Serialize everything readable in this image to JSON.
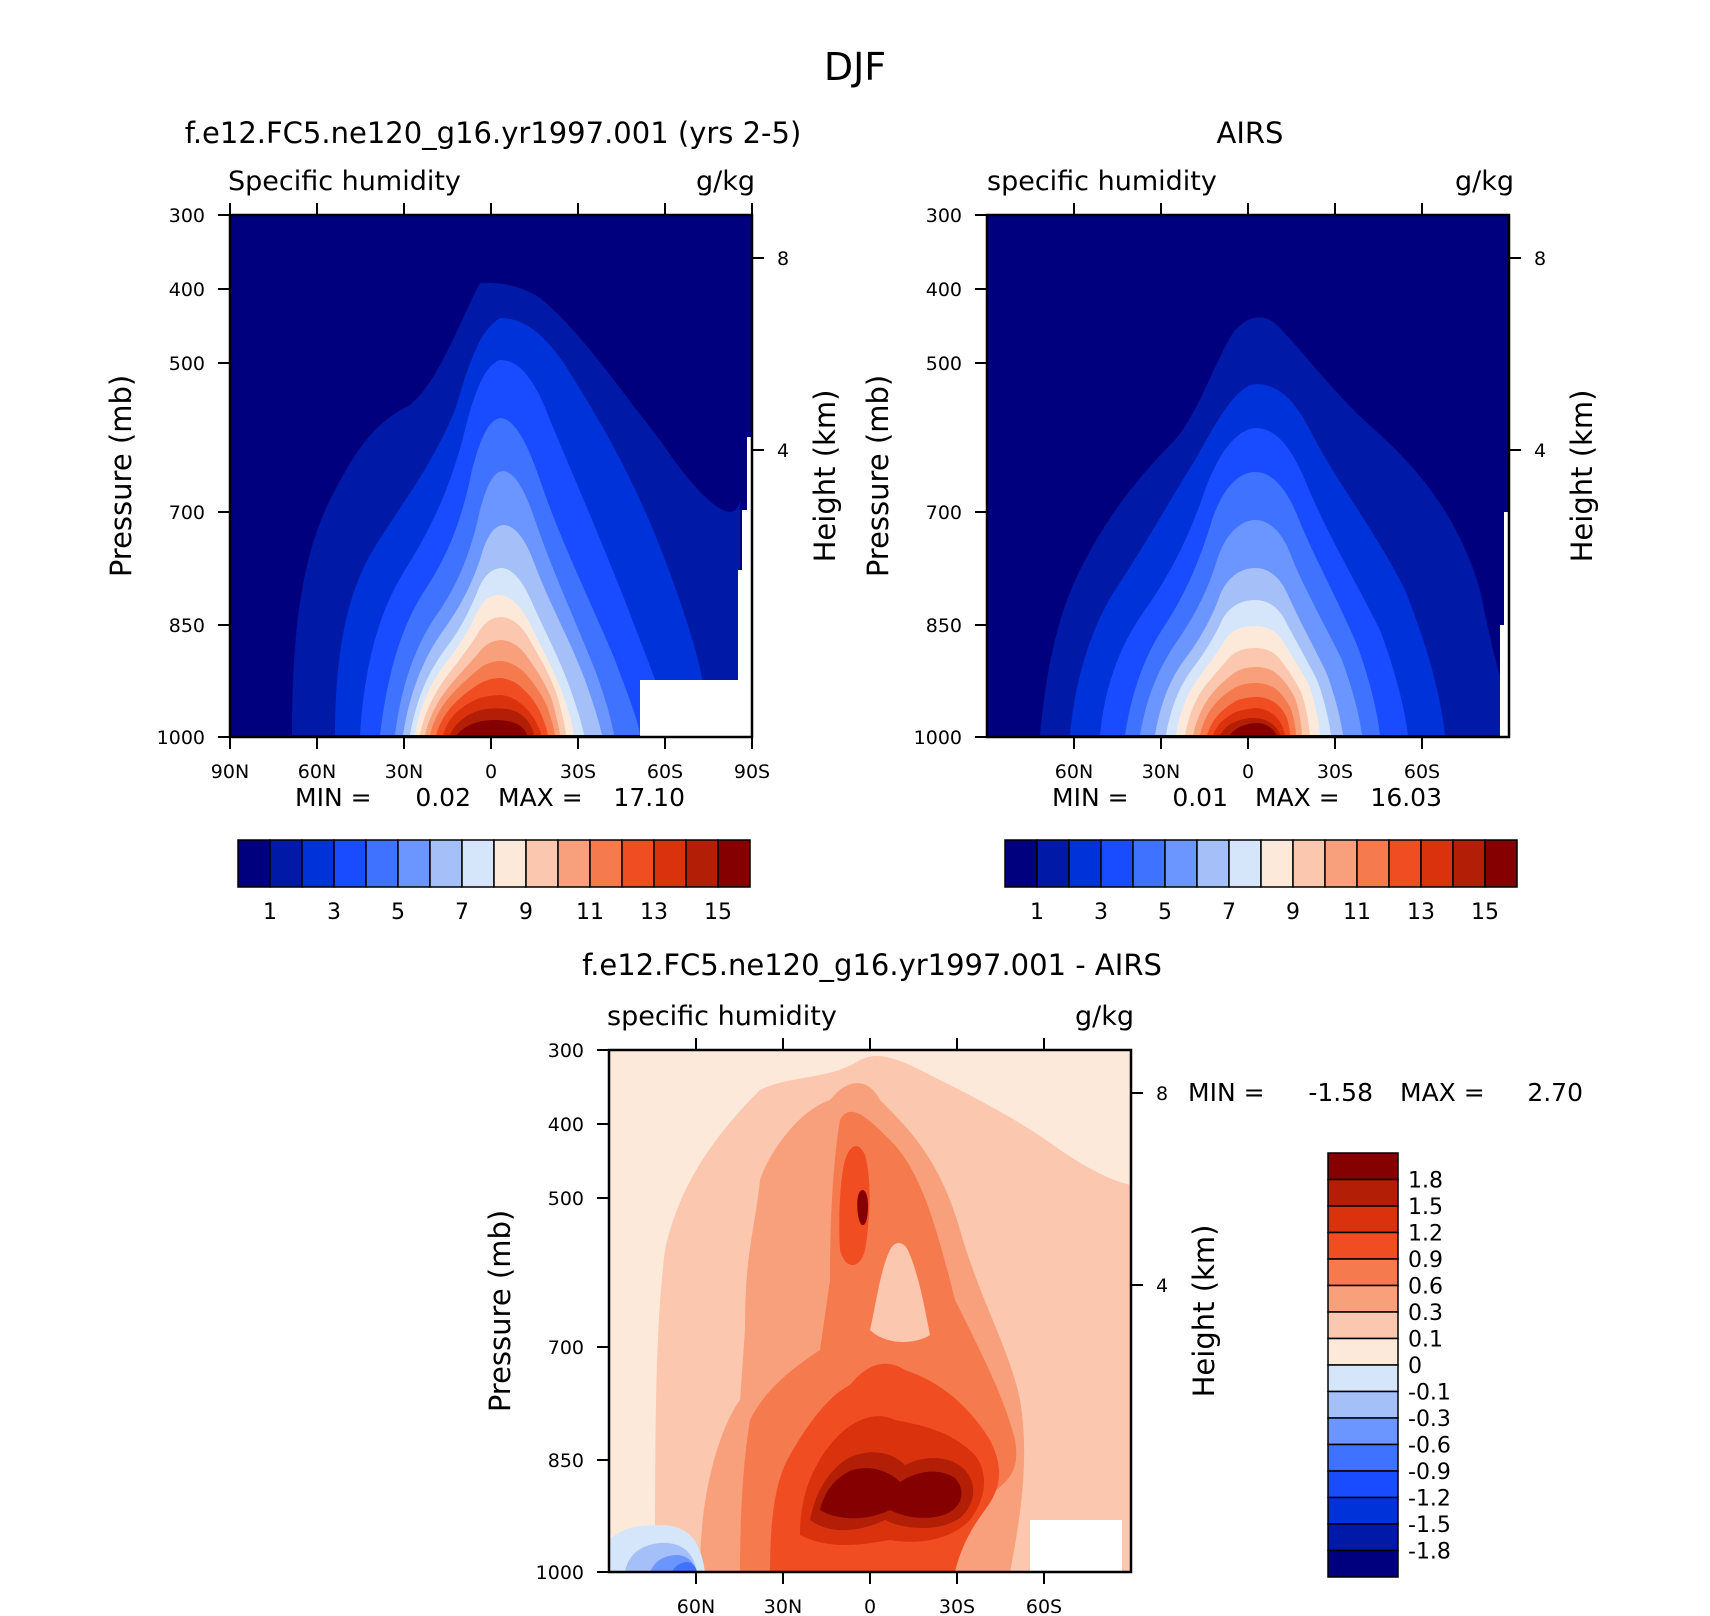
{
  "figure_title": "DJF",
  "chart_data": [
    {
      "type": "heatmap",
      "title": "f.e12.FC5.ne120_g16.yr1997.001 (yrs 2-5)",
      "left_label": "Specific humidity",
      "right_label": "g/kg",
      "ylabel": "Pressure (mb)",
      "ylabel_right": "Height (km)",
      "yticks": [
        "300",
        "400",
        "500",
        "700",
        "850",
        "1000"
      ],
      "yticks_right": [
        "8",
        "4"
      ],
      "xticks": [
        "90N",
        "60N",
        "30N",
        "0",
        "30S",
        "60S",
        "90S"
      ],
      "min_label": "MIN =",
      "min_value": "0.02",
      "max_label": "MAX =",
      "max_value": "17.10",
      "colorbar_ticks": [
        "1",
        "3",
        "5",
        "7",
        "9",
        "11",
        "13",
        "15"
      ],
      "colorbar_levels": [
        1,
        2,
        3,
        4,
        5,
        6,
        7,
        8,
        9,
        10,
        11,
        12,
        13,
        14,
        15,
        16
      ]
    },
    {
      "type": "heatmap",
      "title": "AIRS",
      "left_label": "specific humidity",
      "right_label": "g/kg",
      "ylabel": "Pressure (mb)",
      "ylabel_right": "Height (km)",
      "yticks": [
        "300",
        "400",
        "500",
        "700",
        "850",
        "1000"
      ],
      "yticks_right": [
        "8",
        "4"
      ],
      "xticks": [
        "60N",
        "30N",
        "0",
        "30S",
        "60S"
      ],
      "min_label": "MIN =",
      "min_value": "0.01",
      "max_label": "MAX =",
      "max_value": "16.03",
      "colorbar_ticks": [
        "1",
        "3",
        "5",
        "7",
        "9",
        "11",
        "13",
        "15"
      ],
      "colorbar_levels": [
        1,
        2,
        3,
        4,
        5,
        6,
        7,
        8,
        9,
        10,
        11,
        12,
        13,
        14,
        15,
        16
      ]
    },
    {
      "type": "heatmap",
      "title": "f.e12.FC5.ne120_g16.yr1997.001 - AIRS",
      "left_label": "specific humidity",
      "right_label": "g/kg",
      "ylabel": "Pressure (mb)",
      "ylabel_right": "Height (km)",
      "yticks": [
        "300",
        "400",
        "500",
        "700",
        "850",
        "1000"
      ],
      "yticks_right": [
        "8",
        "4"
      ],
      "xticks": [
        "60N",
        "30N",
        "0",
        "30S",
        "60S"
      ],
      "min_label": "MIN =",
      "min_value": "-1.58",
      "max_label": "MAX =",
      "max_value": "2.70",
      "colorbar_ticks": [
        "1.8",
        "1.5",
        "1.2",
        "0.9",
        "0.6",
        "0.3",
        "0.1",
        "0",
        "-0.1",
        "-0.3",
        "-0.6",
        "-0.9",
        "-1.2",
        "-1.5",
        "-1.8"
      ]
    }
  ],
  "colors": {
    "scale16": [
      "#00007f",
      "#0019a6",
      "#0032d9",
      "#1a4cff",
      "#3f72ff",
      "#6b96ff",
      "#a5bff8",
      "#d5e6fa",
      "#fde9da",
      "#fbc7ae",
      "#f8a07c",
      "#f57a4d",
      "#f04e22",
      "#da320c",
      "#b31e06",
      "#850000"
    ]
  }
}
